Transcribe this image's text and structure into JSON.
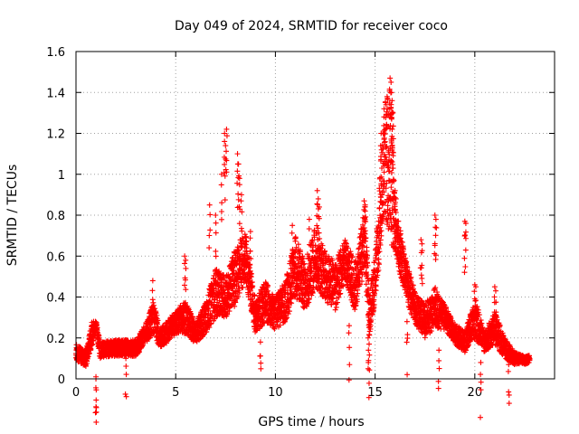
{
  "chart_data": {
    "type": "scatter",
    "title": "Day 049 of 2024, SRMTID for receiver coco",
    "xlabel": "GPS time / hours",
    "ylabel": "SRMTID / TECUs",
    "xlim": [
      0,
      24
    ],
    "ylim": [
      0,
      1.6
    ],
    "xticks": [
      0,
      5,
      10,
      15,
      20
    ],
    "yticks": [
      0,
      0.2,
      0.4,
      0.6,
      0.8,
      1,
      1.2,
      1.4,
      1.6
    ],
    "xtick_labels": [
      "0",
      "5",
      "10",
      "15",
      "20"
    ],
    "ytick_labels": [
      "0",
      "0.2",
      "0.4",
      "0.6",
      "0.8",
      "1",
      "1.2",
      "1.4",
      "1.6"
    ],
    "grid": true,
    "marker": "+",
    "color": "#ff0000",
    "series": [
      {
        "name": "SRMTID",
        "profile": [
          [
            0.0,
            0.13,
            0.04
          ],
          [
            0.5,
            0.1,
            0.04
          ],
          [
            0.8,
            0.22,
            0.06
          ],
          [
            1.0,
            0.26,
            0.03
          ],
          [
            1.2,
            0.14,
            0.04
          ],
          [
            2.0,
            0.15,
            0.04
          ],
          [
            3.0,
            0.15,
            0.04
          ],
          [
            3.5,
            0.22,
            0.05
          ],
          [
            3.9,
            0.3,
            0.08
          ],
          [
            4.2,
            0.2,
            0.05
          ],
          [
            4.5,
            0.22,
            0.05
          ],
          [
            5.0,
            0.28,
            0.06
          ],
          [
            5.5,
            0.3,
            0.08
          ],
          [
            6.0,
            0.22,
            0.05
          ],
          [
            6.5,
            0.3,
            0.08
          ],
          [
            7.0,
            0.42,
            0.12
          ],
          [
            7.5,
            0.4,
            0.1
          ],
          [
            8.0,
            0.5,
            0.14
          ],
          [
            8.5,
            0.6,
            0.12
          ],
          [
            9.0,
            0.3,
            0.08
          ],
          [
            9.5,
            0.38,
            0.1
          ],
          [
            10.0,
            0.32,
            0.08
          ],
          [
            10.5,
            0.38,
            0.1
          ],
          [
            11.0,
            0.55,
            0.15
          ],
          [
            11.5,
            0.45,
            0.12
          ],
          [
            12.0,
            0.6,
            0.15
          ],
          [
            12.5,
            0.5,
            0.12
          ],
          [
            13.0,
            0.45,
            0.12
          ],
          [
            13.5,
            0.58,
            0.1
          ],
          [
            14.0,
            0.45,
            0.12
          ],
          [
            14.5,
            0.7,
            0.15
          ],
          [
            14.7,
            0.3,
            0.1
          ],
          [
            15.0,
            0.5,
            0.12
          ],
          [
            15.5,
            1.1,
            0.3
          ],
          [
            15.8,
            1.0,
            0.35
          ],
          [
            16.0,
            0.75,
            0.12
          ],
          [
            16.5,
            0.5,
            0.1
          ],
          [
            17.0,
            0.35,
            0.08
          ],
          [
            17.5,
            0.28,
            0.08
          ],
          [
            18.0,
            0.35,
            0.1
          ],
          [
            18.5,
            0.3,
            0.06
          ],
          [
            19.0,
            0.22,
            0.05
          ],
          [
            19.5,
            0.18,
            0.05
          ],
          [
            20.0,
            0.3,
            0.1
          ],
          [
            20.5,
            0.18,
            0.05
          ],
          [
            21.0,
            0.25,
            0.08
          ],
          [
            21.5,
            0.15,
            0.05
          ],
          [
            22.0,
            0.1,
            0.03
          ],
          [
            22.5,
            0.09,
            0.02
          ],
          [
            22.75,
            0.1,
            0.02
          ]
        ],
        "spikes": [
          [
            1.0,
            0.0
          ],
          [
            1.0,
            0.01
          ],
          [
            3.85,
            0.48
          ],
          [
            5.45,
            0.6
          ],
          [
            5.5,
            0.58
          ],
          [
            6.7,
            0.85
          ],
          [
            7.0,
            0.8
          ],
          [
            7.3,
            1.0
          ],
          [
            7.45,
            1.2
          ],
          [
            7.55,
            1.22
          ],
          [
            7.5,
            1.14
          ],
          [
            8.1,
            1.1
          ],
          [
            8.15,
            1.05
          ],
          [
            8.2,
            0.98
          ],
          [
            8.3,
            0.9
          ],
          [
            8.75,
            0.72
          ],
          [
            10.85,
            0.75
          ],
          [
            11.7,
            0.78
          ],
          [
            12.1,
            0.92
          ],
          [
            12.15,
            0.88
          ],
          [
            12.2,
            0.84
          ],
          [
            14.45,
            0.87
          ],
          [
            14.5,
            0.85
          ],
          [
            14.65,
            0.2
          ],
          [
            14.7,
            0.17
          ],
          [
            15.3,
            1.2
          ],
          [
            15.45,
            1.32
          ],
          [
            15.55,
            1.34
          ],
          [
            15.75,
            1.47
          ],
          [
            15.8,
            1.45
          ],
          [
            15.82,
            1.4
          ],
          [
            15.85,
            1.36
          ],
          [
            15.9,
            1.3
          ],
          [
            16.0,
            0.92
          ],
          [
            16.05,
            0.88
          ],
          [
            17.3,
            0.68
          ],
          [
            17.35,
            0.66
          ],
          [
            18.0,
            0.8
          ],
          [
            18.05,
            0.78
          ],
          [
            19.5,
            0.77
          ],
          [
            19.55,
            0.76
          ],
          [
            20.0,
            0.46
          ],
          [
            20.05,
            0.45
          ],
          [
            21.0,
            0.45
          ],
          [
            21.05,
            0.43
          ],
          [
            2.5,
            0.1
          ],
          [
            9.25,
            0.18
          ],
          [
            13.7,
            0.26
          ],
          [
            16.6,
            0.28
          ],
          [
            18.2,
            0.14
          ],
          [
            20.3,
            0.08
          ],
          [
            21.7,
            0.07
          ]
        ]
      }
    ]
  }
}
